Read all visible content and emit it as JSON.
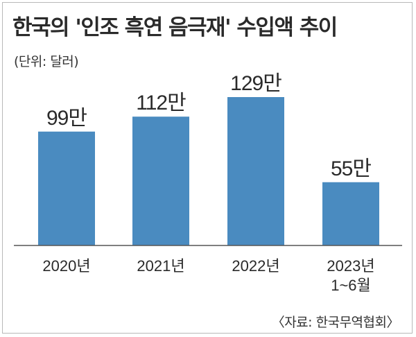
{
  "title": "한국의 '인조 흑연 음극재' 수입액 추이",
  "unit_note": "(단위: 달러)",
  "source": "〈자료: 한국무역협회〉",
  "colors": {
    "bar": "#4a8bc0",
    "axis": "#555555"
  },
  "chart_data": {
    "type": "bar",
    "categories": [
      "2020년",
      "2021년",
      "2022년",
      "2023년\n1~6월"
    ],
    "values": [
      99,
      112,
      129,
      55
    ],
    "data_labels": [
      "99만",
      "112만",
      "129만",
      "55만"
    ],
    "title": "한국의 '인조 흑연 음극재' 수입액 추이",
    "xlabel": "",
    "ylabel": "",
    "ylim": [
      0,
      140
    ],
    "grid": false,
    "legend": "none"
  }
}
